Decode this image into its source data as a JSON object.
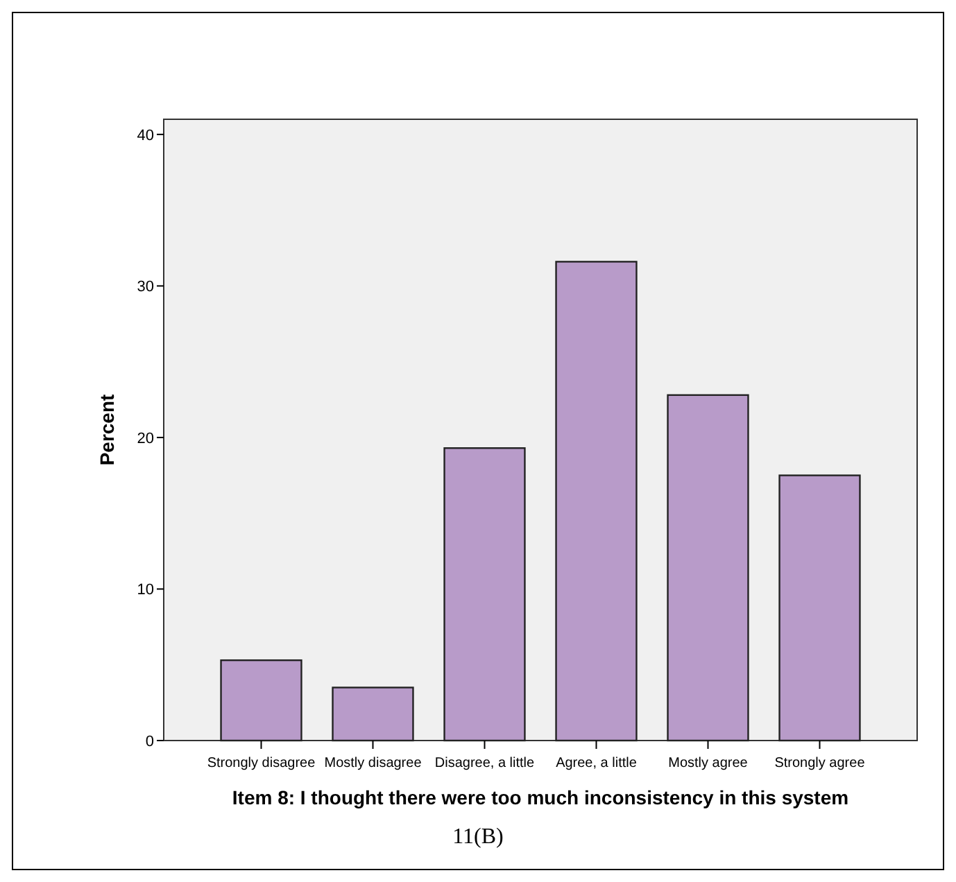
{
  "chart_data": {
    "type": "bar",
    "xlabel": "Item 8: I thought there were too much inconsistency in this system",
    "ylabel": "Percent",
    "categories": [
      "Strongly disagree",
      "Mostly disagree",
      "Disagree, a little",
      "Agree, a little",
      "Mostly agree",
      "Strongly agree"
    ],
    "values": [
      5.3,
      3.5,
      19.3,
      31.6,
      22.8,
      17.5
    ],
    "color": "#b89bc9",
    "ylim": [
      0,
      41
    ],
    "yticks": [
      0,
      10,
      20,
      30,
      40
    ],
    "grid": false,
    "annotations": [
      "11(B)"
    ]
  }
}
